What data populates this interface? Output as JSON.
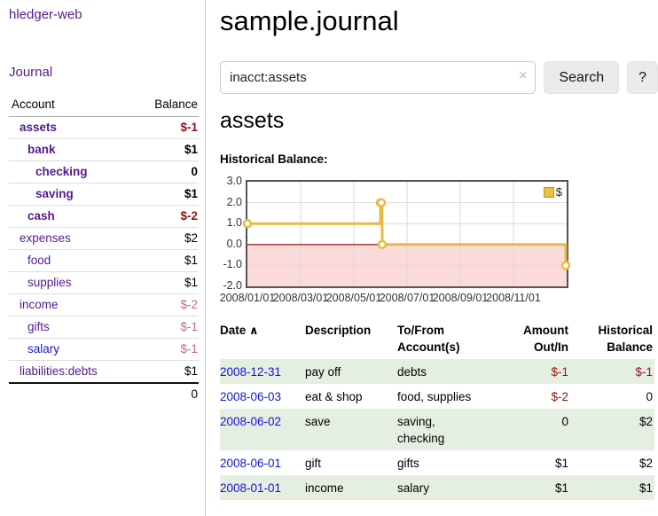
{
  "sidebar": {
    "brand": "hledger-web",
    "journal_link": "Journal",
    "accounts_table": {
      "headers": [
        "Account",
        "Balance"
      ],
      "rows": [
        {
          "name": "assets",
          "depth": 1,
          "bold": true,
          "balance": "$-1",
          "balance_style": "neg-strong"
        },
        {
          "name": "bank",
          "depth": 2,
          "bold": true,
          "balance": "$1",
          "balance_style": "normal"
        },
        {
          "name": "checking",
          "depth": 3,
          "bold": true,
          "balance": "0",
          "balance_style": "normal"
        },
        {
          "name": "saving",
          "depth": 3,
          "bold": true,
          "balance": "$1",
          "balance_style": "normal"
        },
        {
          "name": "cash",
          "depth": 2,
          "bold": true,
          "balance": "$-2",
          "balance_style": "neg-strong"
        },
        {
          "name": "expenses",
          "depth": 1,
          "bold": false,
          "balance": "$2",
          "balance_style": "normal"
        },
        {
          "name": "food",
          "depth": 2,
          "bold": false,
          "balance": "$1",
          "balance_style": "normal"
        },
        {
          "name": "supplies",
          "depth": 2,
          "bold": false,
          "balance": "$1",
          "balance_style": "normal"
        },
        {
          "name": "income",
          "depth": 1,
          "bold": false,
          "balance": "$-2",
          "balance_style": "neg-soft"
        },
        {
          "name": "gifts",
          "depth": 2,
          "bold": false,
          "balance": "$-1",
          "balance_style": "neg-soft"
        },
        {
          "name": "salary",
          "depth": 2,
          "bold": false,
          "balance": "$-1",
          "balance_style": "neg-soft",
          "link_color": "blue"
        },
        {
          "name": "liabilities:debts",
          "depth": 1,
          "bold": false,
          "balance": "$1",
          "balance_style": "normal"
        }
      ],
      "total": "0"
    }
  },
  "header": {
    "title": "sample.journal"
  },
  "search": {
    "query": "inacct:assets",
    "clear_icon": "×",
    "button": "Search",
    "help_button": "?"
  },
  "account_page": {
    "heading": "assets",
    "chart_label": "Historical Balance:"
  },
  "chart_data": {
    "type": "line",
    "title": "Historical Balance",
    "step": true,
    "legend": "$",
    "series": [
      {
        "name": "$",
        "dates": [
          "2008-01-01",
          "2008-06-01",
          "2008-06-02",
          "2008-06-03",
          "2008-12-31"
        ],
        "values": [
          1,
          2,
          2,
          0,
          -1
        ]
      }
    ],
    "ylim": [
      -2.0,
      3.0
    ],
    "yticks": [
      "3.0",
      "2.0",
      "1.0",
      "0.0",
      "-1.0",
      "-2.0"
    ],
    "xticks": [
      "2008/01/01",
      "2008/03/01",
      "2008/05/01",
      "2008/07/01",
      "2008/09/01",
      "2008/11/01"
    ],
    "x_range": [
      "2008-01-01",
      "2009-01-01"
    ],
    "line_color": "#e7bb42",
    "negative_fill": "#fbdada",
    "zero_line_color": "#8e0b0b",
    "grid": true,
    "legend_position": "top-right"
  },
  "register": {
    "headers": {
      "date": "Date",
      "sort_icon": "∧",
      "description": "Description",
      "account": "To/From Account(s)",
      "amount": "Amount Out/In",
      "balance": "Historical Balance"
    },
    "rows": [
      {
        "date": "2008-12-31",
        "description": "pay off",
        "accounts": [
          "debts"
        ],
        "amount": "$-1",
        "amount_neg": true,
        "balance": "$-1",
        "balance_neg": true
      },
      {
        "date": "2008-06-03",
        "description": "eat & shop",
        "accounts": [
          "food, supplies"
        ],
        "amount": "$-2",
        "amount_neg": true,
        "balance": "0",
        "balance_neg": false
      },
      {
        "date": "2008-06-02",
        "description": "save",
        "accounts": [
          "saving,",
          "checking"
        ],
        "amount": "0",
        "amount_neg": false,
        "balance": "$2",
        "balance_neg": false
      },
      {
        "date": "2008-06-01",
        "description": "gift",
        "accounts": [
          "gifts"
        ],
        "amount": "$1",
        "amount_neg": false,
        "balance": "$2",
        "balance_neg": false
      },
      {
        "date": "2008-01-01",
        "description": "income",
        "accounts": [
          "salary"
        ],
        "amount": "$1",
        "amount_neg": false,
        "balance": "$1",
        "balance_neg": false
      }
    ]
  }
}
